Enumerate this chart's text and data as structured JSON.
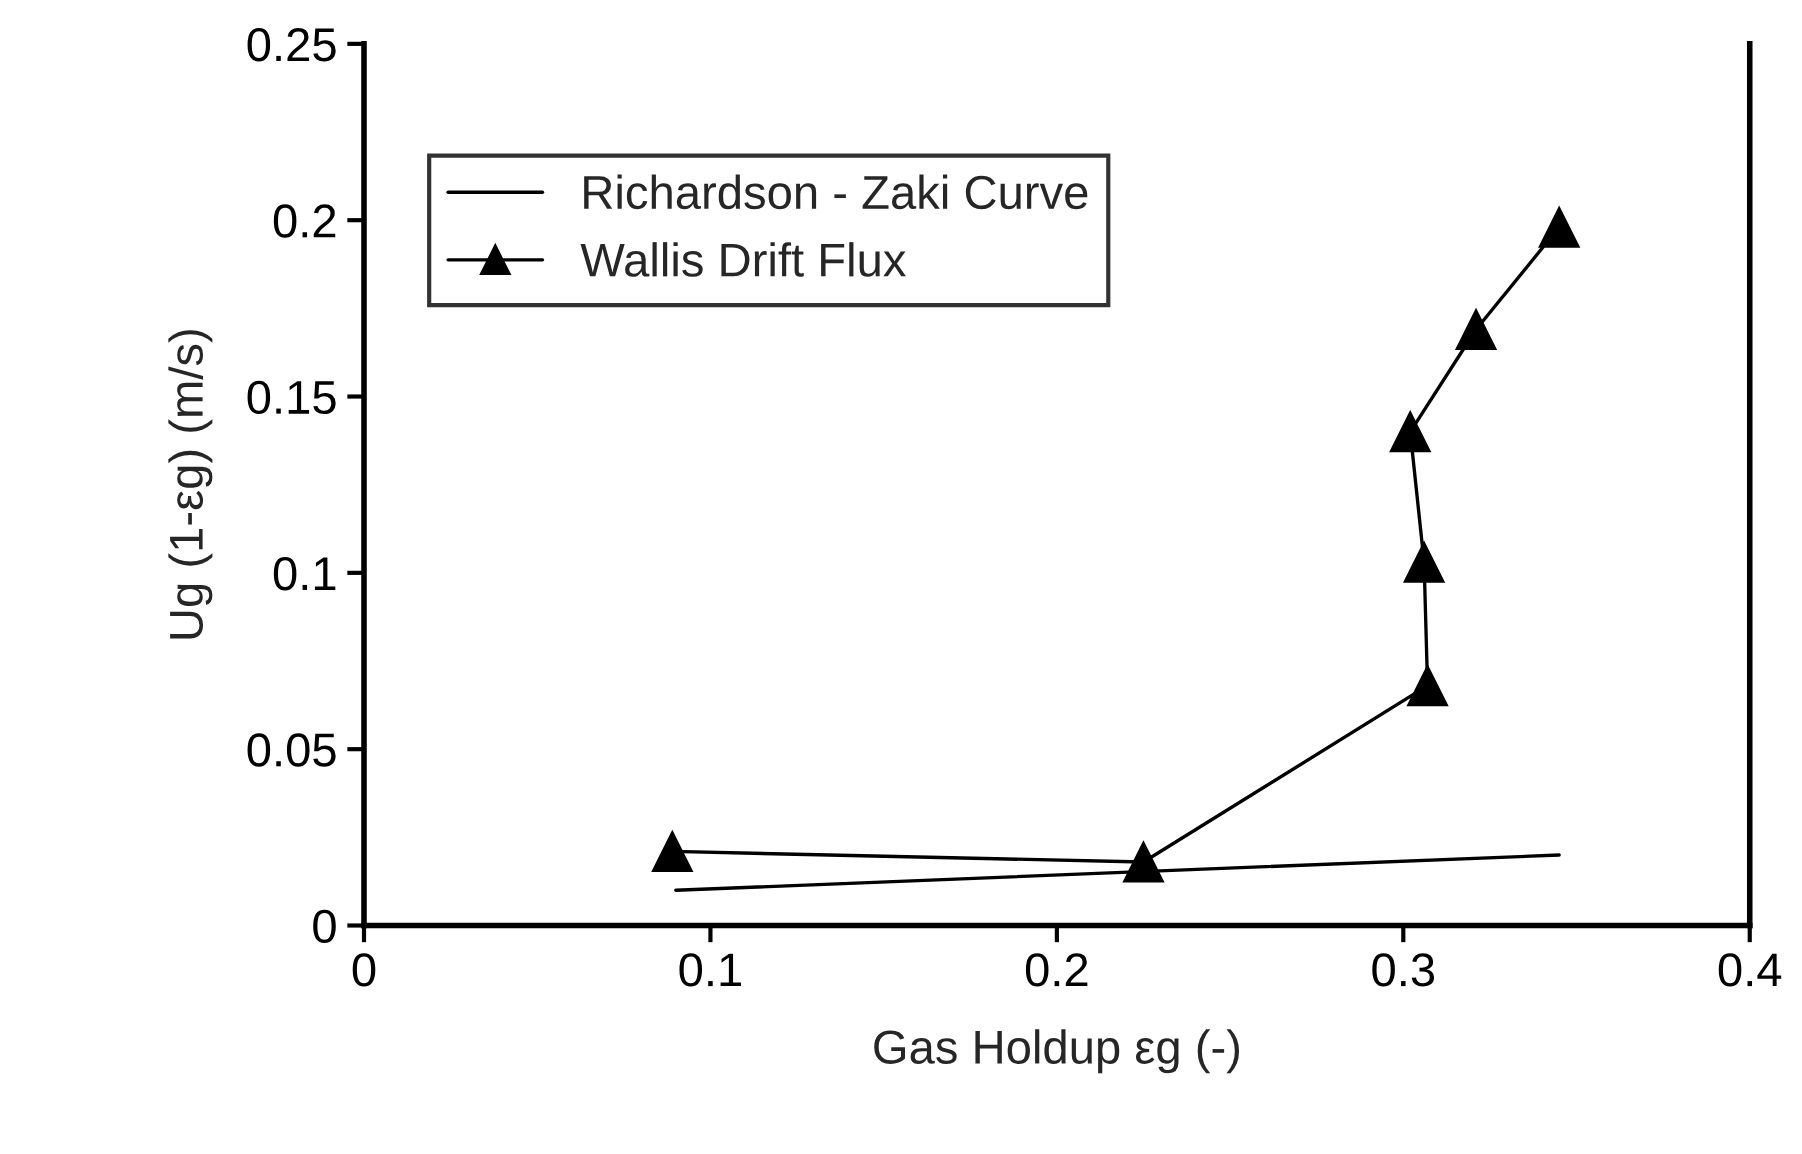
{
  "chart_data": {
    "type": "line",
    "xlabel": "Gas Holdup εg (-)",
    "ylabel": "Ug (1-εg) (m/s)",
    "xlim": [
      0,
      0.4
    ],
    "xticks": [
      0,
      0.1,
      0.2,
      0.3,
      0.4
    ],
    "ylim": [
      0,
      0.25
    ],
    "yticks": [
      0,
      0.05,
      0.1,
      0.15,
      0.2,
      0.25
    ],
    "grid": false,
    "legend": "top left",
    "series": [
      {
        "name": "Richardson - Zaki Curve",
        "color": "#000000",
        "marker": "none",
        "x": [
          0.09,
          0.345
        ],
        "values": [
          0.01,
          0.02
        ]
      },
      {
        "name": "Wallis Drift Flux",
        "color": "#000000",
        "marker": "triangle",
        "x": [
          0.089,
          0.225,
          0.307,
          0.306,
          0.302,
          0.321,
          0.345
        ],
        "values": [
          0.021,
          0.018,
          0.068,
          0.103,
          0.14,
          0.169,
          0.198
        ]
      }
    ]
  }
}
